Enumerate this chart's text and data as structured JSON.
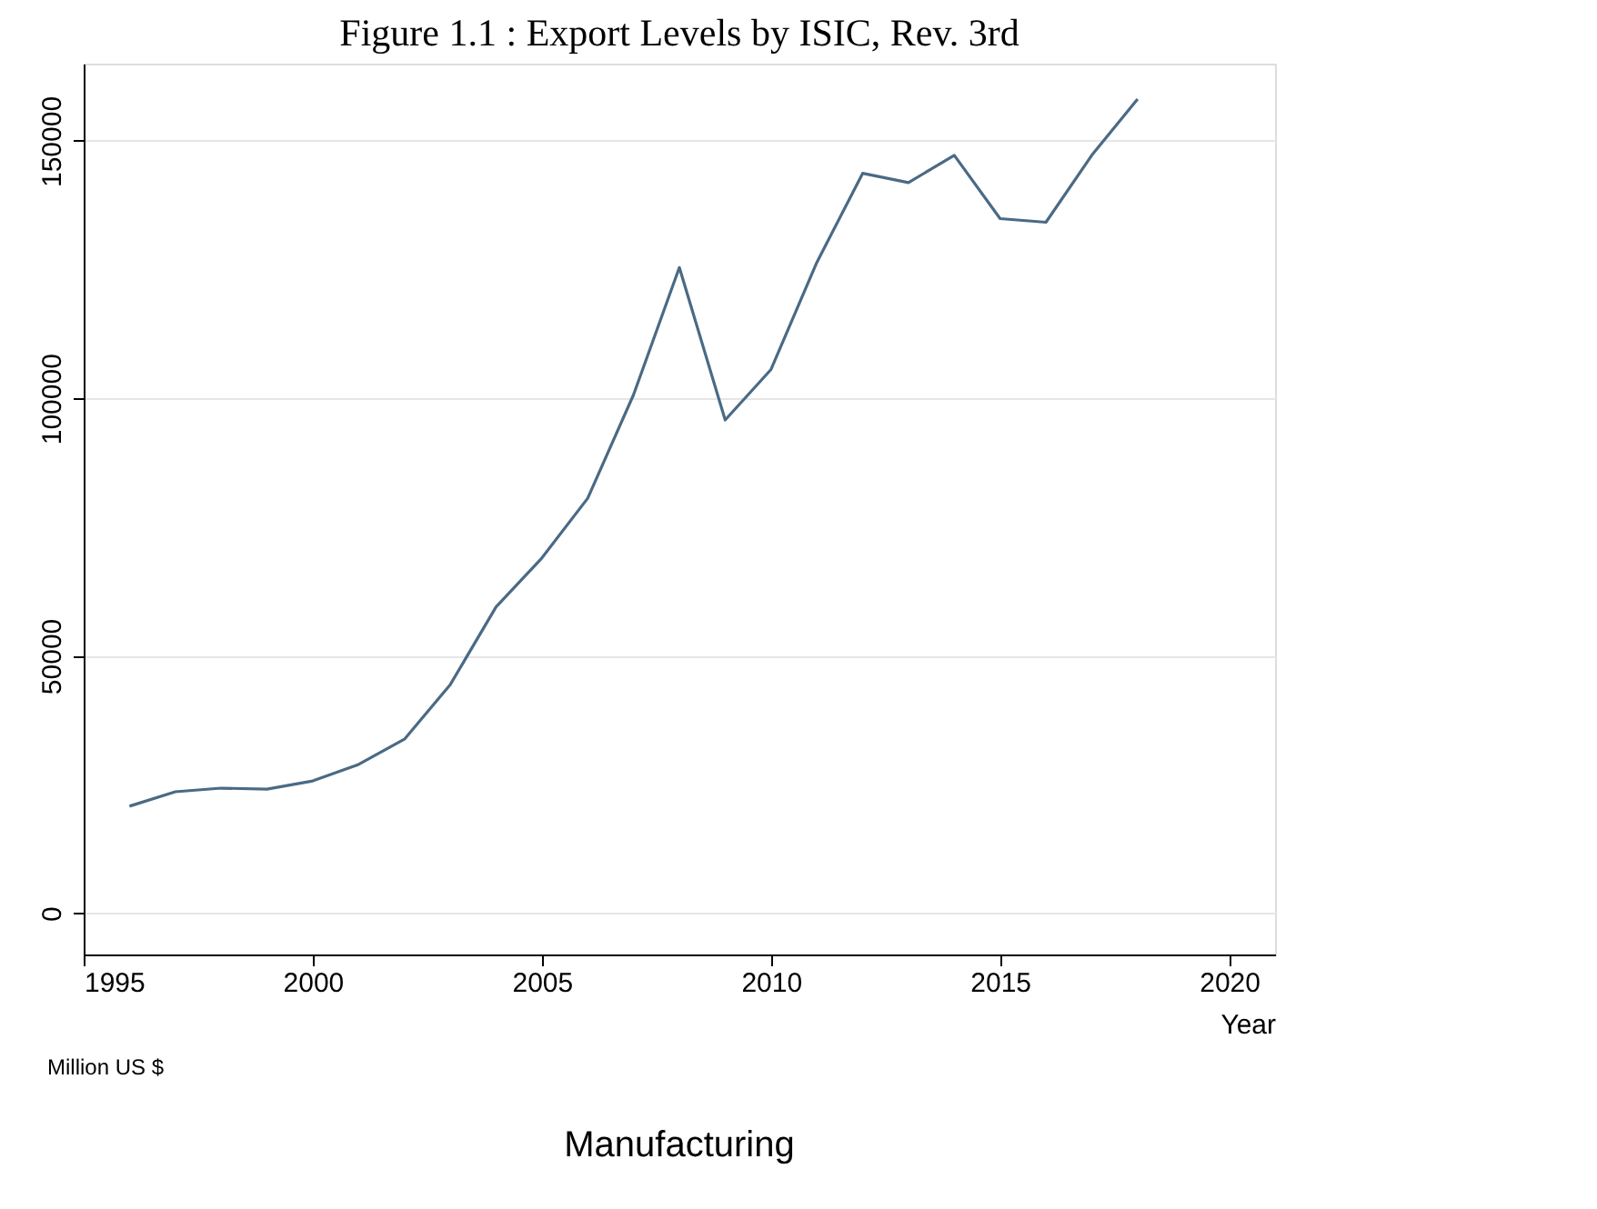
{
  "chart_data": {
    "type": "line",
    "title": "Figure 1.1 : Export Levels by ISIC, Rev. 3rd",
    "xlabel": "Year",
    "annotations": [
      "Million US $",
      "Manufacturing"
    ],
    "x": [
      1996,
      1997,
      1998,
      1999,
      2000,
      2001,
      2002,
      2003,
      2004,
      2005,
      2006,
      2007,
      2008,
      2009,
      2010,
      2011,
      2012,
      2013,
      2014,
      2015,
      2016,
      2017,
      2018
    ],
    "series": [
      {
        "color": "#4a6a85",
        "values": [
          20800,
          23600,
          24300,
          24100,
          25700,
          28900,
          33800,
          44400,
          59500,
          69000,
          80600,
          100700,
          125400,
          95800,
          105600,
          126400,
          143700,
          141900,
          147200,
          134900,
          134200,
          147200,
          158100
        ]
      }
    ],
    "xlim": [
      1995,
      2021
    ],
    "xticks": [
      1995,
      2000,
      2005,
      2010,
      2015,
      2020
    ],
    "ylim": [
      -8000,
      165000
    ],
    "yticks": [
      0,
      50000,
      100000,
      150000
    ],
    "grid": "y",
    "legend": false
  }
}
